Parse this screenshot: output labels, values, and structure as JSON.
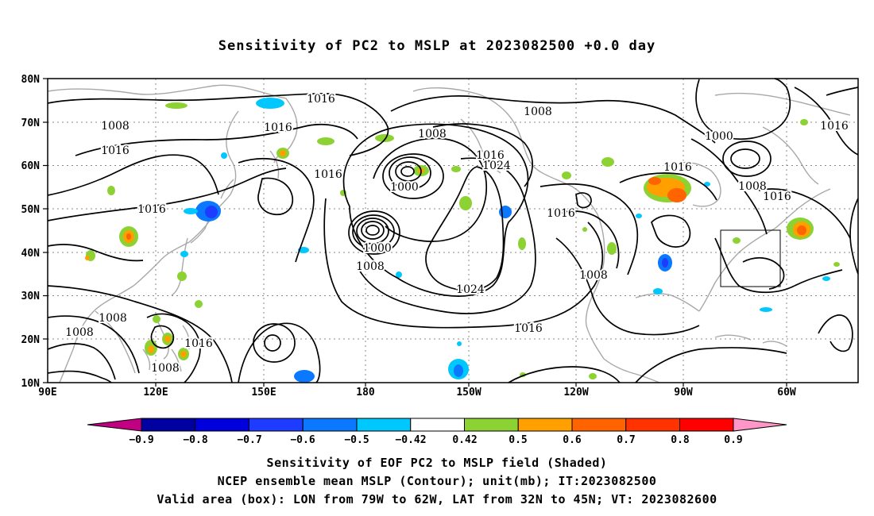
{
  "title": "Sensitivity of PC2 to MSLP at 2023082500 +0.0 day",
  "map": {
    "lat_labels": [
      "80N",
      "70N",
      "60N",
      "50N",
      "40N",
      "30N",
      "20N",
      "10N"
    ],
    "lon_labels": [
      "90E",
      "120E",
      "150E",
      "180",
      "150W",
      "120W",
      "90W",
      "60W"
    ],
    "contour_labels": [
      "1016",
      "1008",
      "1016",
      "1016",
      "1016",
      "1008",
      "1008",
      "1016",
      "1024",
      "1000",
      "1000",
      "1008",
      "1024",
      "1016",
      "1016",
      "1008",
      "1016",
      "1016",
      "1008",
      "1016",
      "1008",
      "1000",
      "1016",
      "1008",
      "1008",
      "1008",
      "1016"
    ],
    "valid_box": {
      "lon_range": [
        "79W",
        "62W"
      ],
      "lat_range": [
        "32N",
        "45N"
      ]
    }
  },
  "colorbar": {
    "labels": [
      "−0.9",
      "−0.8",
      "−0.7",
      "−0.6",
      "−0.5",
      "−0.42",
      "0.42",
      "0.5",
      "0.6",
      "0.7",
      "0.8",
      "0.9"
    ],
    "colors": [
      "#c00080",
      "#0000a0",
      "#0000dd",
      "#1e3cff",
      "#0a78ff",
      "#00c8ff",
      "#ffffff",
      "#8cd232",
      "#ffa000",
      "#ff6400",
      "#ff3200",
      "#ff0000",
      "#ff96c8"
    ]
  },
  "captions": {
    "line1": "Sensitivity of EOF PC2 to MSLP field (Shaded)",
    "line2": "NCEP ensemble mean MSLP (Contour); unit(mb); IT:2023082500",
    "line3": "Valid area (box): LON from 79W to 62W, LAT from 32N to 45N; VT: 2023082600"
  }
}
